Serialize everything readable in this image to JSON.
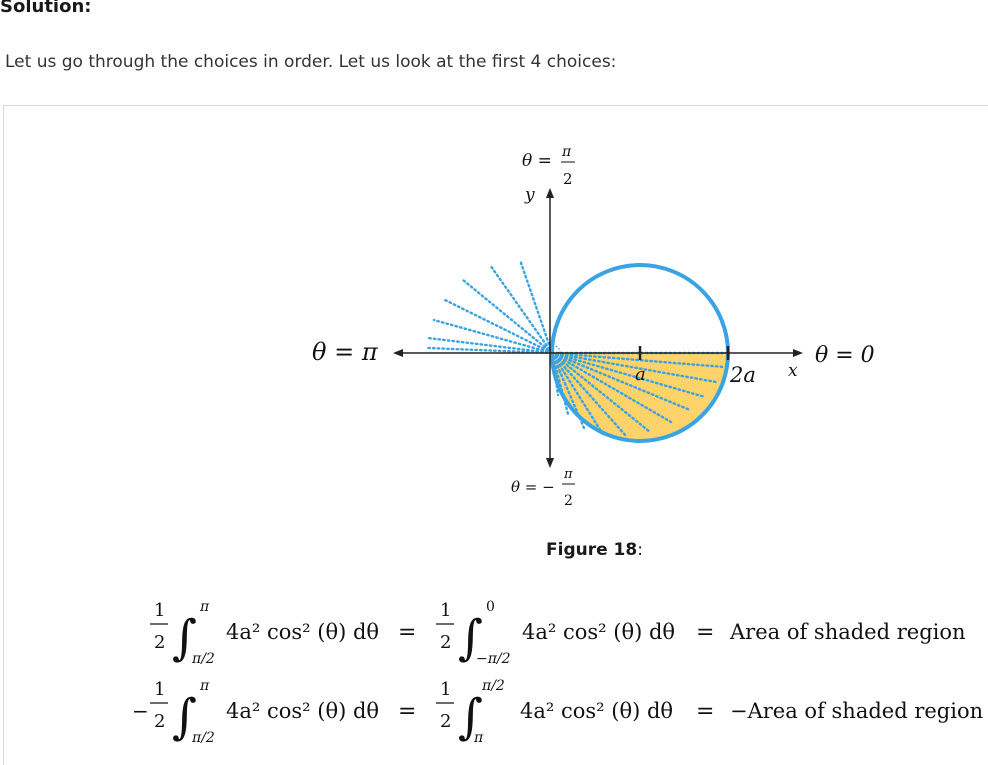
{
  "heading": "Solution:",
  "intro": "Let us go through the choices in order. Let us look at the first 4 choices:",
  "figure": {
    "caption_label": "Figure 18",
    "caption_suffix": ":",
    "labels": {
      "theta_top": "θ = π/2",
      "theta_top_lhs": "θ =",
      "pi": "π",
      "two": "2",
      "y_axis": "y",
      "x_axis": "x",
      "theta_left": "θ = π",
      "theta_right": "θ = 0",
      "theta_bottom_lhs": "θ = −",
      "a_label": "a",
      "two_a_label": "2a"
    },
    "colors": {
      "circle": "#3aa3e3",
      "shade": "#fdd36a",
      "dots": "#3aa3e3",
      "axis": "#222222"
    }
  },
  "equations": [
    {
      "lhs_sign": "",
      "lhs_frac_num": "1",
      "lhs_frac_den": "2",
      "lhs_upper": "π",
      "lhs_lower": "π/2",
      "integrand": "4a² cos² (θ) dθ",
      "mid_frac_num": "1",
      "mid_frac_den": "2",
      "mid_upper": "0",
      "mid_lower": "−π/2",
      "rhs": "Area of shaded region"
    },
    {
      "lhs_sign": "−",
      "lhs_frac_num": "1",
      "lhs_frac_den": "2",
      "lhs_upper": "π",
      "lhs_lower": "π/2",
      "integrand": "4a² cos² (θ) dθ",
      "mid_frac_num": "1",
      "mid_frac_den": "2",
      "mid_upper": "π/2",
      "mid_lower": "π",
      "rhs": "−Area of shaded region"
    }
  ],
  "equals": "="
}
